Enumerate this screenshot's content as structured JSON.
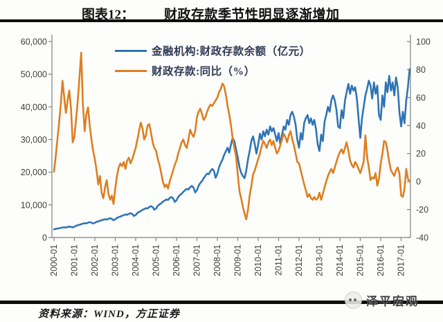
{
  "title": {
    "prefix": "图表12：",
    "text": "财政存款季节性明显逐渐增加"
  },
  "legend": [
    {
      "name": "金融机构:财政存款余额（亿元）",
      "color": "#2e74b5"
    },
    {
      "name": "财政存款:同比（%）",
      "color": "#dd7e20"
    }
  ],
  "source": {
    "text": "资料来源：WIND，方正证券"
  },
  "watermark": {
    "text": "泽平宏观"
  },
  "style": {
    "rule_color": "#0d0d0d",
    "axis_color": "#7f7f7f",
    "tick_label_color": "#3d3d3d"
  },
  "chart_data": {
    "type": "line",
    "title": "财政存款季节性明显逐渐增加",
    "frequency": "monthly",
    "x_start": "2000-01",
    "x_end": "2017-06",
    "grid": false,
    "legend_position": "top-center-inside",
    "x_tick_labels": [
      "2000-01",
      "2001-01",
      "2002-01",
      "2003-01",
      "2004-01",
      "2005-01",
      "2006-01",
      "2007-01",
      "2008-01",
      "2009-01",
      "2010-01",
      "2011-01",
      "2012-01",
      "2013-01",
      "2014-01",
      "2015-01",
      "2016-01",
      "2017-01"
    ],
    "left_axis": {
      "min": 0,
      "max": 60000,
      "tick_labels": [
        "0",
        "10,000",
        "20,000",
        "30,000",
        "40,000",
        "50,000",
        "60,000"
      ]
    },
    "right_axis": {
      "min": -40,
      "max": 100,
      "tick_labels": [
        "-40",
        "-20",
        "0",
        "20",
        "40",
        "60",
        "80",
        "100"
      ]
    },
    "series": [
      {
        "name": "金融机构:财政存款余额（亿元）",
        "axis": "left",
        "color": "#2e74b5",
        "values": [
          2500,
          2650,
          2750,
          2850,
          2950,
          3050,
          3150,
          3050,
          3250,
          3350,
          3250,
          3100,
          3300,
          3600,
          3750,
          3900,
          4100,
          4250,
          4400,
          4300,
          4550,
          4700,
          4550,
          4300,
          4500,
          4800,
          4950,
          5100,
          5300,
          5450,
          5600,
          5500,
          5750,
          5900,
          5700,
          5300,
          5600,
          6000,
          6250,
          6400,
          6650,
          6850,
          7050,
          6950,
          7250,
          7450,
          7200,
          6600,
          6900,
          7500,
          7850,
          8100,
          8450,
          8700,
          9000,
          8900,
          9350,
          9600,
          9300,
          8500,
          8900,
          9700,
          10150,
          10500,
          10950,
          11300,
          11650,
          11500,
          12100,
          12400,
          12000,
          10900,
          11400,
          12400,
          13000,
          13400,
          14000,
          14450,
          14900,
          14700,
          15400,
          15800,
          15300,
          13800,
          14500,
          15900,
          16700,
          17300,
          18200,
          18900,
          19600,
          19400,
          20400,
          21000,
          20400,
          18300,
          19500,
          21500,
          22800,
          23800,
          25300,
          26400,
          27500,
          26000,
          28500,
          30400,
          29500,
          27000,
          24500,
          21500,
          19800,
          18800,
          18200,
          20500,
          24000,
          26500,
          29600,
          31000,
          28500,
          25700,
          28500,
          31800,
          30000,
          32500,
          31000,
          33000,
          31500,
          34000,
          32500,
          33500,
          31500,
          29500,
          32000,
          28500,
          31500,
          34000,
          33000,
          36000,
          34500,
          37500,
          38500,
          37000,
          34500,
          30000,
          27500,
          32000,
          30000,
          35000,
          36500,
          37500,
          35000,
          36500,
          34500,
          36000,
          33000,
          28500,
          26500,
          31500,
          29500,
          35500,
          37500,
          40000,
          38500,
          42000,
          43500,
          42000,
          39000,
          34000,
          33500,
          39000,
          36500,
          42000,
          44500,
          47000,
          44000,
          46500,
          45000,
          46000,
          42500,
          36500,
          30500,
          36500,
          40000,
          43500,
          45500,
          48000,
          46500,
          42500,
          47500,
          44000,
          46500,
          37500,
          36000,
          43500,
          40000,
          47500,
          44500,
          49500,
          45000,
          47500,
          43500,
          49000,
          46000,
          38500,
          34000,
          38500,
          35000,
          42000,
          46000,
          51500
        ]
      },
      {
        "name": "财政存款:同比（%）",
        "axis": "right",
        "color": "#dd7e20",
        "values": [
          7,
          18,
          30,
          42,
          55,
          72,
          60,
          49,
          58,
          65,
          52,
          28,
          32,
          45,
          58,
          75,
          92,
          55,
          36,
          48,
          53,
          40,
          30,
          22,
          16,
          8,
          -2,
          4,
          -8,
          -12,
          -4,
          1,
          -9,
          -13,
          -10,
          -16,
          -5,
          4,
          10,
          13,
          11,
          14,
          9,
          15,
          17,
          13,
          16,
          20,
          24,
          30,
          36,
          42,
          38,
          30,
          33,
          40,
          41,
          35,
          28,
          24,
          22,
          16,
          12,
          6,
          0,
          -4,
          -2,
          -5,
          0,
          4,
          8,
          12,
          15,
          20,
          24,
          28,
          30,
          26,
          24,
          30,
          37,
          34,
          32,
          36,
          46,
          50,
          52,
          48,
          44,
          46,
          50,
          53,
          55,
          54,
          56,
          58,
          60,
          64,
          66,
          70,
          68,
          62,
          54,
          48,
          40,
          31,
          24,
          18,
          5,
          -7,
          -12,
          -18,
          -23,
          -27,
          -20,
          -10,
          -3,
          5,
          8,
          12,
          16,
          20,
          25,
          29,
          27,
          24,
          28,
          30,
          26,
          29,
          24,
          20,
          22,
          26,
          30,
          34,
          32,
          28,
          33,
          36,
          30,
          26,
          20,
          14,
          13,
          8,
          3,
          -2,
          -6,
          -11,
          -9,
          -12,
          -13,
          -11,
          -13,
          -12,
          -8,
          -13,
          -9,
          -4,
          0,
          4,
          7,
          9,
          6,
          10,
          14,
          18,
          21,
          23,
          20,
          24,
          28,
          22,
          15,
          12,
          10,
          14,
          12,
          9,
          6,
          10,
          14,
          33,
          18,
          10,
          1,
          3,
          2,
          6,
          -3,
          2,
          13,
          20,
          29,
          28,
          22,
          14,
          8,
          6,
          4,
          8,
          10,
          6,
          -10,
          -11,
          -5,
          9,
          2,
          0
        ]
      }
    ]
  }
}
